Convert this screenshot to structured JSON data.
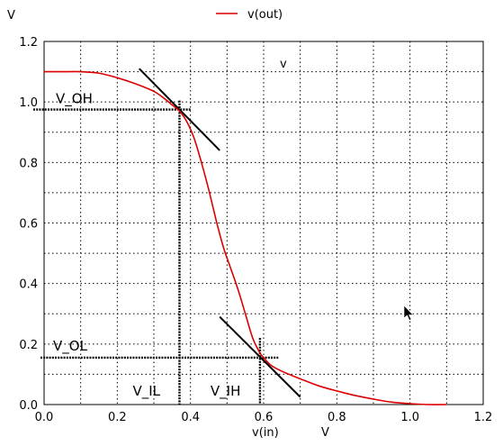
{
  "chart_data": {
    "type": "line",
    "legend": {
      "entries": [
        {
          "label": "v(out)",
          "color": "#dd0000"
        }
      ],
      "placement": "top-center"
    },
    "y_unit_label": "V",
    "inner_label": "v",
    "xlabel": "v(in)",
    "x_unit_label": "V",
    "xlim": [
      0,
      1.2
    ],
    "ylim": [
      0,
      1.2
    ],
    "x_ticks": [
      "0.0",
      "0.2",
      "0.4",
      "0.6",
      "0.8",
      "1.0",
      "1.2"
    ],
    "y_ticks": [
      "0.0",
      "0.2",
      "0.4",
      "0.6",
      "0.8",
      "1.0",
      "1.2"
    ],
    "grid": true,
    "series": [
      {
        "name": "v(out)",
        "color": "#dd0000",
        "points": [
          [
            0.0,
            1.1
          ],
          [
            0.05,
            1.1
          ],
          [
            0.1,
            1.1
          ],
          [
            0.15,
            1.095
          ],
          [
            0.2,
            1.08
          ],
          [
            0.25,
            1.06
          ],
          [
            0.3,
            1.035
          ],
          [
            0.33,
            1.01
          ],
          [
            0.35,
            0.99
          ],
          [
            0.37,
            0.97
          ],
          [
            0.39,
            0.935
          ],
          [
            0.41,
            0.88
          ],
          [
            0.43,
            0.8
          ],
          [
            0.45,
            0.71
          ],
          [
            0.47,
            0.61
          ],
          [
            0.49,
            0.52
          ],
          [
            0.51,
            0.45
          ],
          [
            0.53,
            0.38
          ],
          [
            0.55,
            0.3
          ],
          [
            0.57,
            0.22
          ],
          [
            0.59,
            0.17
          ],
          [
            0.6,
            0.155
          ],
          [
            0.62,
            0.13
          ],
          [
            0.65,
            0.11
          ],
          [
            0.7,
            0.085
          ],
          [
            0.75,
            0.062
          ],
          [
            0.8,
            0.045
          ],
          [
            0.85,
            0.03
          ],
          [
            0.9,
            0.018
          ],
          [
            0.95,
            0.008
          ],
          [
            1.0,
            0.003
          ],
          [
            1.05,
            0.0
          ],
          [
            1.1,
            0.0
          ]
        ]
      }
    ],
    "annotations": {
      "V_OH": {
        "label": "V_OH",
        "y": 0.975
      },
      "V_OL": {
        "label": "V_OL",
        "y": 0.155
      },
      "V_IL": {
        "label": "V_IL",
        "x": 0.37
      },
      "V_IH": {
        "label": "V_IH",
        "x": 0.59
      },
      "tangent_high": {
        "from": [
          0.26,
          1.11
        ],
        "to": [
          0.48,
          0.84
        ]
      },
      "tangent_low": {
        "from": [
          0.48,
          0.29
        ],
        "to": [
          0.7,
          0.025
        ]
      }
    }
  }
}
